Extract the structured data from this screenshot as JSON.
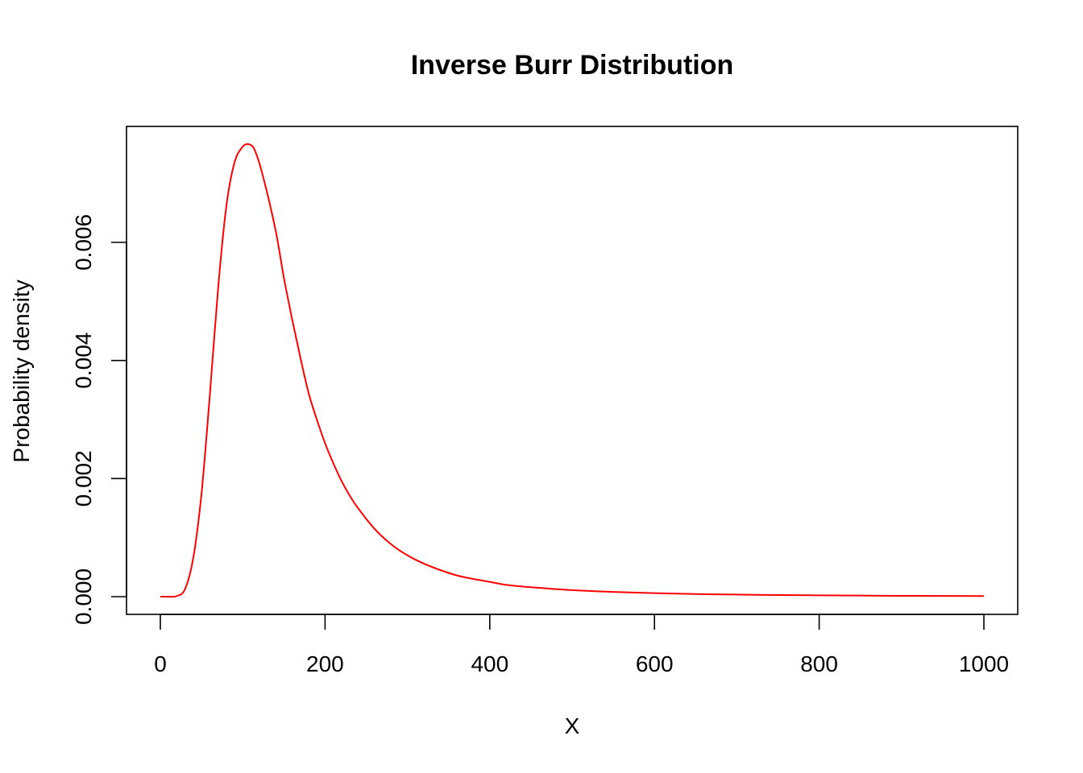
{
  "chart_data": {
    "type": "line",
    "title": "Inverse Burr Distribution",
    "xlabel": "X",
    "ylabel": "Probability density",
    "xlim": [
      0,
      1000
    ],
    "ylim": [
      0,
      0.0076
    ],
    "xticks": [
      0,
      200,
      400,
      600,
      800,
      1000
    ],
    "xtick_labels": [
      "0",
      "200",
      "400",
      "600",
      "800",
      "1000"
    ],
    "yticks": [
      0,
      0.002,
      0.004,
      0.006
    ],
    "ytick_labels": [
      "0.000",
      "0.002",
      "0.004",
      "0.006"
    ],
    "grid": false,
    "series": [
      {
        "color": "#ff0000",
        "x": [
          0,
          10,
          20,
          30,
          40,
          50,
          60,
          70,
          80,
          90,
          100,
          108,
          115,
          125,
          140,
          150,
          160,
          170,
          180,
          190,
          200,
          210,
          220,
          230,
          240,
          260,
          280,
          300,
          320,
          340,
          360,
          380,
          400,
          420,
          450,
          500,
          550,
          600,
          650,
          700,
          750,
          800,
          850,
          900,
          950,
          1000
        ],
        "y": [
          0,
          0,
          1e-05,
          0.00013,
          0.00066,
          0.00175,
          0.0034,
          0.0052,
          0.0066,
          0.00735,
          0.00762,
          0.00766,
          0.00755,
          0.0071,
          0.0062,
          0.0054,
          0.0047,
          0.00405,
          0.00345,
          0.003,
          0.0026,
          0.00226,
          0.00196,
          0.00171,
          0.0015,
          0.00115,
          0.00089,
          0.0007,
          0.00056,
          0.00045,
          0.00036,
          0.0003,
          0.00025,
          0.0002,
          0.00016,
          0.00011,
          8e-05,
          6e-05,
          4.5e-05,
          3.5e-05,
          2.8e-05,
          2.2e-05,
          1.8e-05,
          1.4e-05,
          1.2e-05,
          1e-05
        ]
      }
    ]
  }
}
